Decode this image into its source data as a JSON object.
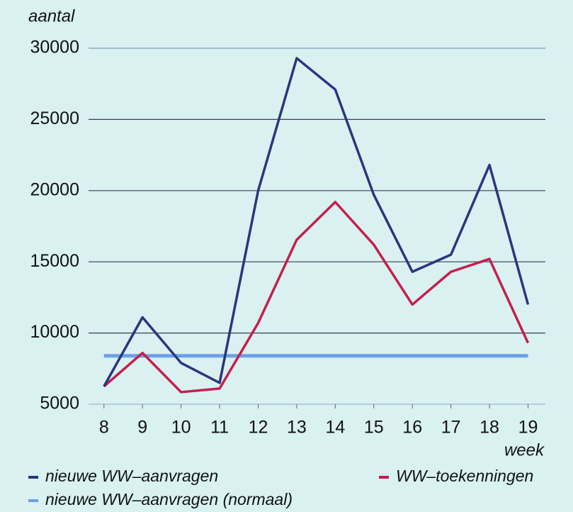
{
  "chart_data": {
    "type": "line",
    "y_label": "aantal",
    "x_label": "week",
    "x": [
      8,
      9,
      10,
      11,
      12,
      13,
      14,
      15,
      16,
      17,
      18,
      19
    ],
    "xlim": [
      7.6,
      19.45
    ],
    "xticks": [
      8,
      9,
      10,
      11,
      12,
      13,
      14,
      15,
      16,
      17,
      18,
      19
    ],
    "ylim": [
      5000,
      30000
    ],
    "yticks": [
      5000,
      10000,
      15000,
      20000,
      25000,
      30000
    ],
    "grid": true,
    "series": [
      {
        "name": "nieuwe WW–aanvragen",
        "color": "#2b3580",
        "values": [
          6250,
          11100,
          7900,
          6500,
          20000,
          29300,
          27100,
          19700,
          14300,
          15500,
          21800,
          12000
        ]
      },
      {
        "name": "WW–toekenningen",
        "color": "#c51f4c",
        "values": [
          6250,
          8600,
          5850,
          6100,
          10700,
          16550,
          19200,
          16200,
          12000,
          14300,
          15200,
          9300
        ]
      },
      {
        "name": "nieuwe WW–aanvragen (normaal)",
        "color": "#6c9fe6",
        "values": [
          8400,
          8400,
          8400,
          8400,
          8400,
          8400,
          8400,
          8400,
          8400,
          8400,
          8400,
          8400
        ]
      }
    ]
  }
}
